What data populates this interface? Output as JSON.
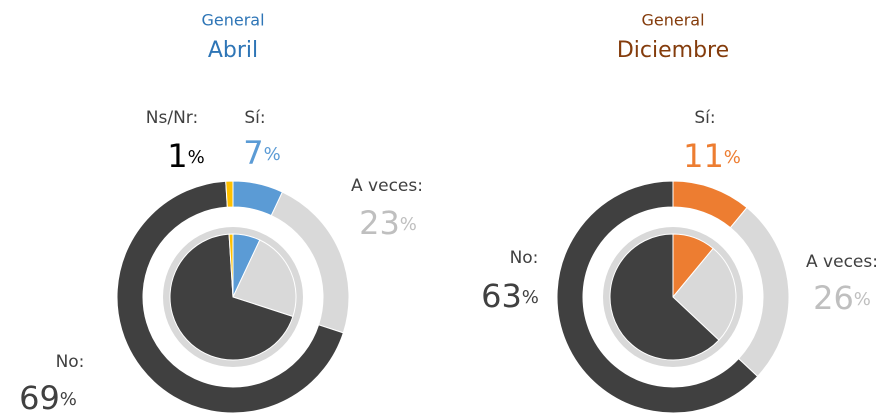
{
  "chart_data": [
    {
      "type": "donut",
      "subtitle": "General",
      "title": "Abril",
      "categories": [
        "Sí:",
        "A veces:",
        "No:",
        "Ns/Nr:"
      ],
      "values": [
        7,
        23,
        69,
        1
      ],
      "value_labels": [
        "7%",
        "23%",
        "69%",
        "1%"
      ],
      "colors": [
        "#5b9bd5",
        "#d9d9d9",
        "#404040",
        "#ffc000"
      ]
    },
    {
      "type": "donut",
      "subtitle": "General",
      "title": "Diciembre",
      "categories": [
        "Sí:",
        "A veces:",
        "No:"
      ],
      "values": [
        11,
        26,
        63
      ],
      "value_labels": [
        "11%",
        "26%",
        "63%"
      ],
      "colors": [
        "#ed7d31",
        "#d9d9d9",
        "#404040"
      ]
    }
  ]
}
